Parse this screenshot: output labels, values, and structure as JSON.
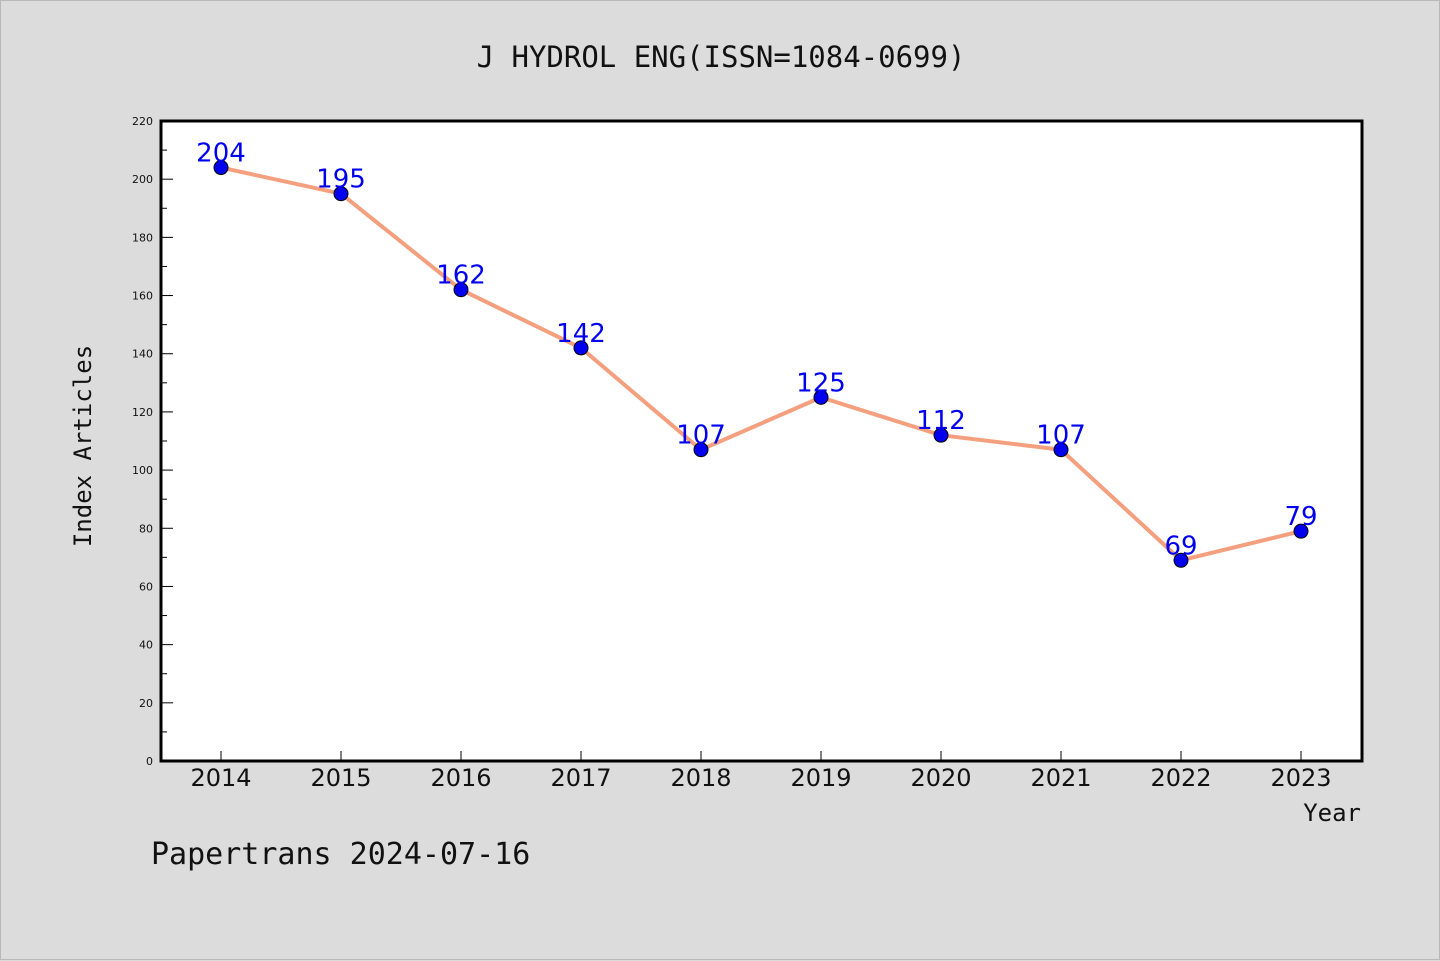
{
  "chart_data": {
    "type": "line",
    "title": "J HYDROL ENG(ISSN=1084-0699)",
    "xlabel": "Year",
    "ylabel": "Index Articles",
    "categories": [
      "2014",
      "2015",
      "2016",
      "2017",
      "2018",
      "2019",
      "2020",
      "2021",
      "2022",
      "2023"
    ],
    "series": [
      {
        "values": [
          204,
          195,
          162,
          142,
          107,
          125,
          112,
          107,
          69,
          79
        ]
      }
    ],
    "ylim": [
      0,
      220
    ],
    "yticks": [
      0,
      20,
      40,
      60,
      80,
      100,
      120,
      140,
      160,
      180,
      200,
      220
    ],
    "grid": false,
    "show_data_labels": true,
    "colors": {
      "line": "#f4a07f",
      "marker": "#0000ee",
      "data_label": "#0000ee",
      "plot_background": "#ffffff",
      "figure_background": "#dcdcdc"
    }
  },
  "footer": {
    "text": "Papertrans 2024-07-16"
  }
}
